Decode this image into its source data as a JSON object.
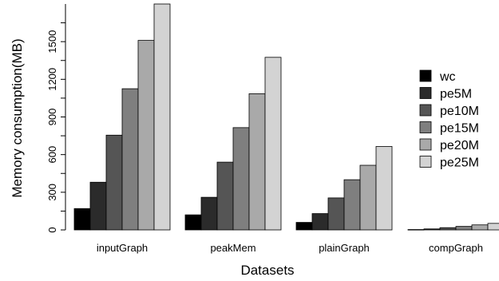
{
  "chart_data": {
    "type": "bar",
    "title": "",
    "xlabel": "Datasets",
    "ylabel": "Memory consumption(MB)",
    "ylim": [
      0,
      1800
    ],
    "yticks": [
      0,
      150,
      300,
      450,
      600,
      750,
      900,
      1050,
      1200,
      1350,
      1500,
      1650
    ],
    "categories": [
      "inputGraph",
      "peakMem",
      "plainGraph",
      "compGraph"
    ],
    "series": [
      {
        "name": "wc",
        "color": "#000000",
        "values": [
          170,
          120,
          60,
          3
        ]
      },
      {
        "name": "pe5M",
        "color": "#2b2b2b",
        "values": [
          380,
          260,
          130,
          8
        ]
      },
      {
        "name": "pe10M",
        "color": "#555555",
        "values": [
          755,
          540,
          255,
          18
        ]
      },
      {
        "name": "pe15M",
        "color": "#7f7f7f",
        "values": [
          1125,
          815,
          400,
          28
        ]
      },
      {
        "name": "pe20M",
        "color": "#a9a9a9",
        "values": [
          1510,
          1085,
          515,
          40
        ]
      },
      {
        "name": "pe25M",
        "color": "#d3d3d3",
        "values": [
          1800,
          1375,
          665,
          52
        ]
      }
    ],
    "legend": "right",
    "grid": false
  }
}
